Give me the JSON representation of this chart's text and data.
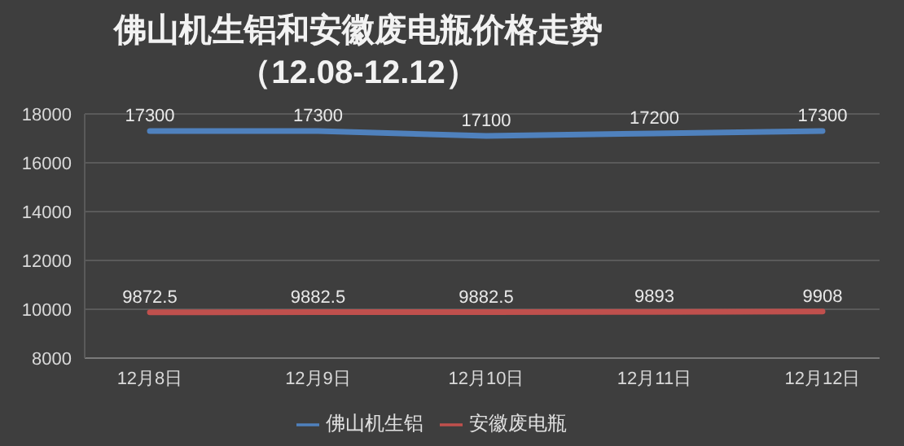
{
  "chart_data": {
    "type": "line",
    "title": "佛山机生铝和安徽废电瓶价格走势",
    "subtitle": "（12.08-12.12）",
    "categories": [
      "12月8日",
      "12月9日",
      "12月10日",
      "12月11日",
      "12月12日"
    ],
    "series": [
      {
        "name": "佛山机生铝",
        "color": "#4f81bd",
        "values": [
          17300,
          17300,
          17100,
          17200,
          17300
        ]
      },
      {
        "name": "安徽废电瓶",
        "color": "#c0504d",
        "values": [
          9872.5,
          9882.5,
          9882.5,
          9893,
          9908
        ]
      }
    ],
    "ylim": [
      8000,
      18000
    ],
    "yticks": [
      8000,
      10000,
      12000,
      14000,
      16000,
      18000
    ],
    "grid": "y",
    "legend": "bottom",
    "data_labels": true,
    "marker": "none",
    "line_style": "solid"
  }
}
